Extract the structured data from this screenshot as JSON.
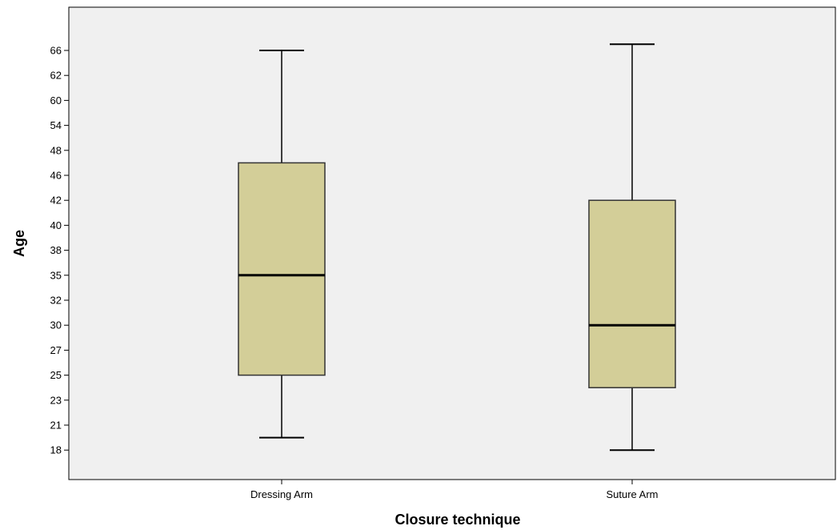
{
  "chart_data": {
    "type": "boxplot",
    "title": "",
    "xlabel": "Closure technique",
    "ylabel": "Age",
    "grid": false,
    "colors": {
      "plot_background": "#f0f0f0",
      "box_fill": "#d3ce98",
      "line": "#000000"
    },
    "y_ticks": [
      "18",
      "21",
      "23",
      "25",
      "27",
      "30",
      "32",
      "35",
      "38",
      "40",
      "42",
      "46",
      "48",
      "54",
      "60",
      "62",
      "66"
    ],
    "categories": [
      "Dressing Arm",
      "Suture Arm"
    ],
    "boxes": [
      {
        "category": "Dressing Arm",
        "min": "~19.5 (between 18 and 21)",
        "q1": "25",
        "median": "35",
        "q3": "~47 (between 46 and 48)",
        "max": "66"
      },
      {
        "category": "Suture Arm",
        "min": "18",
        "q1": "~24 (between 23 and 25)",
        "median": "30",
        "q3": "42",
        "max": "~67 (above 66)"
      }
    ]
  }
}
